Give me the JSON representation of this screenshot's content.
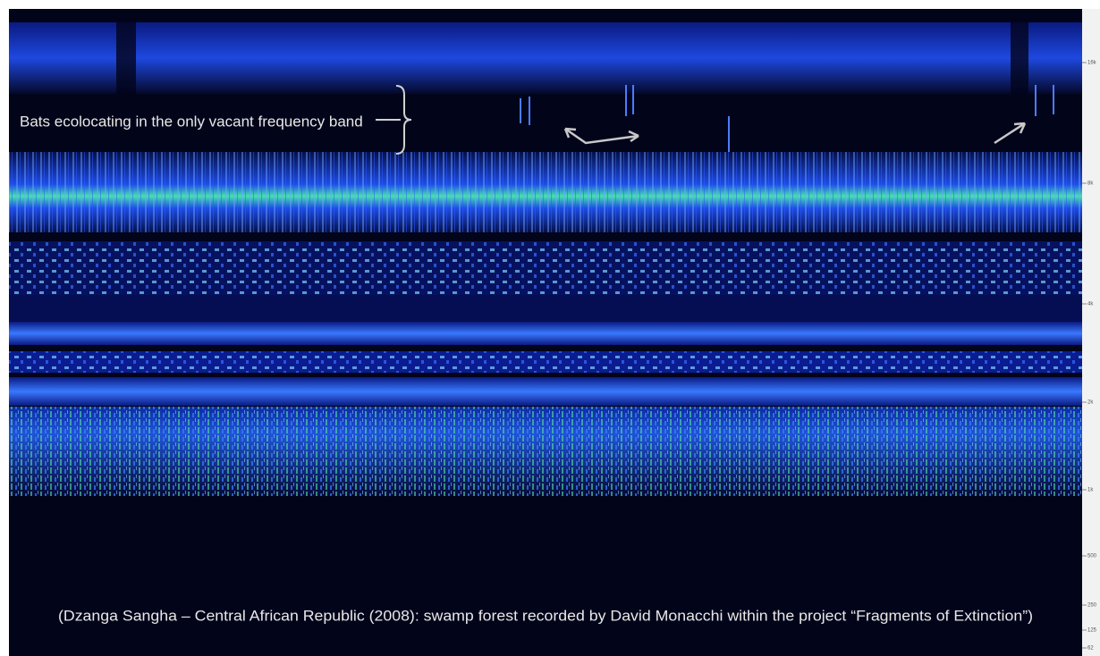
{
  "annotation": "Bats ecolocating in the only vacant frequency band",
  "caption": "(Dzanga Sangha – Central African Republic (2008): swamp forest recorded by David Monacchi within the project “Fragments of Extinction”)",
  "axis": {
    "ticks": [
      "16k",
      "8k",
      "4k",
      "2k",
      "1k",
      "500",
      "250",
      "125",
      "62"
    ]
  }
}
